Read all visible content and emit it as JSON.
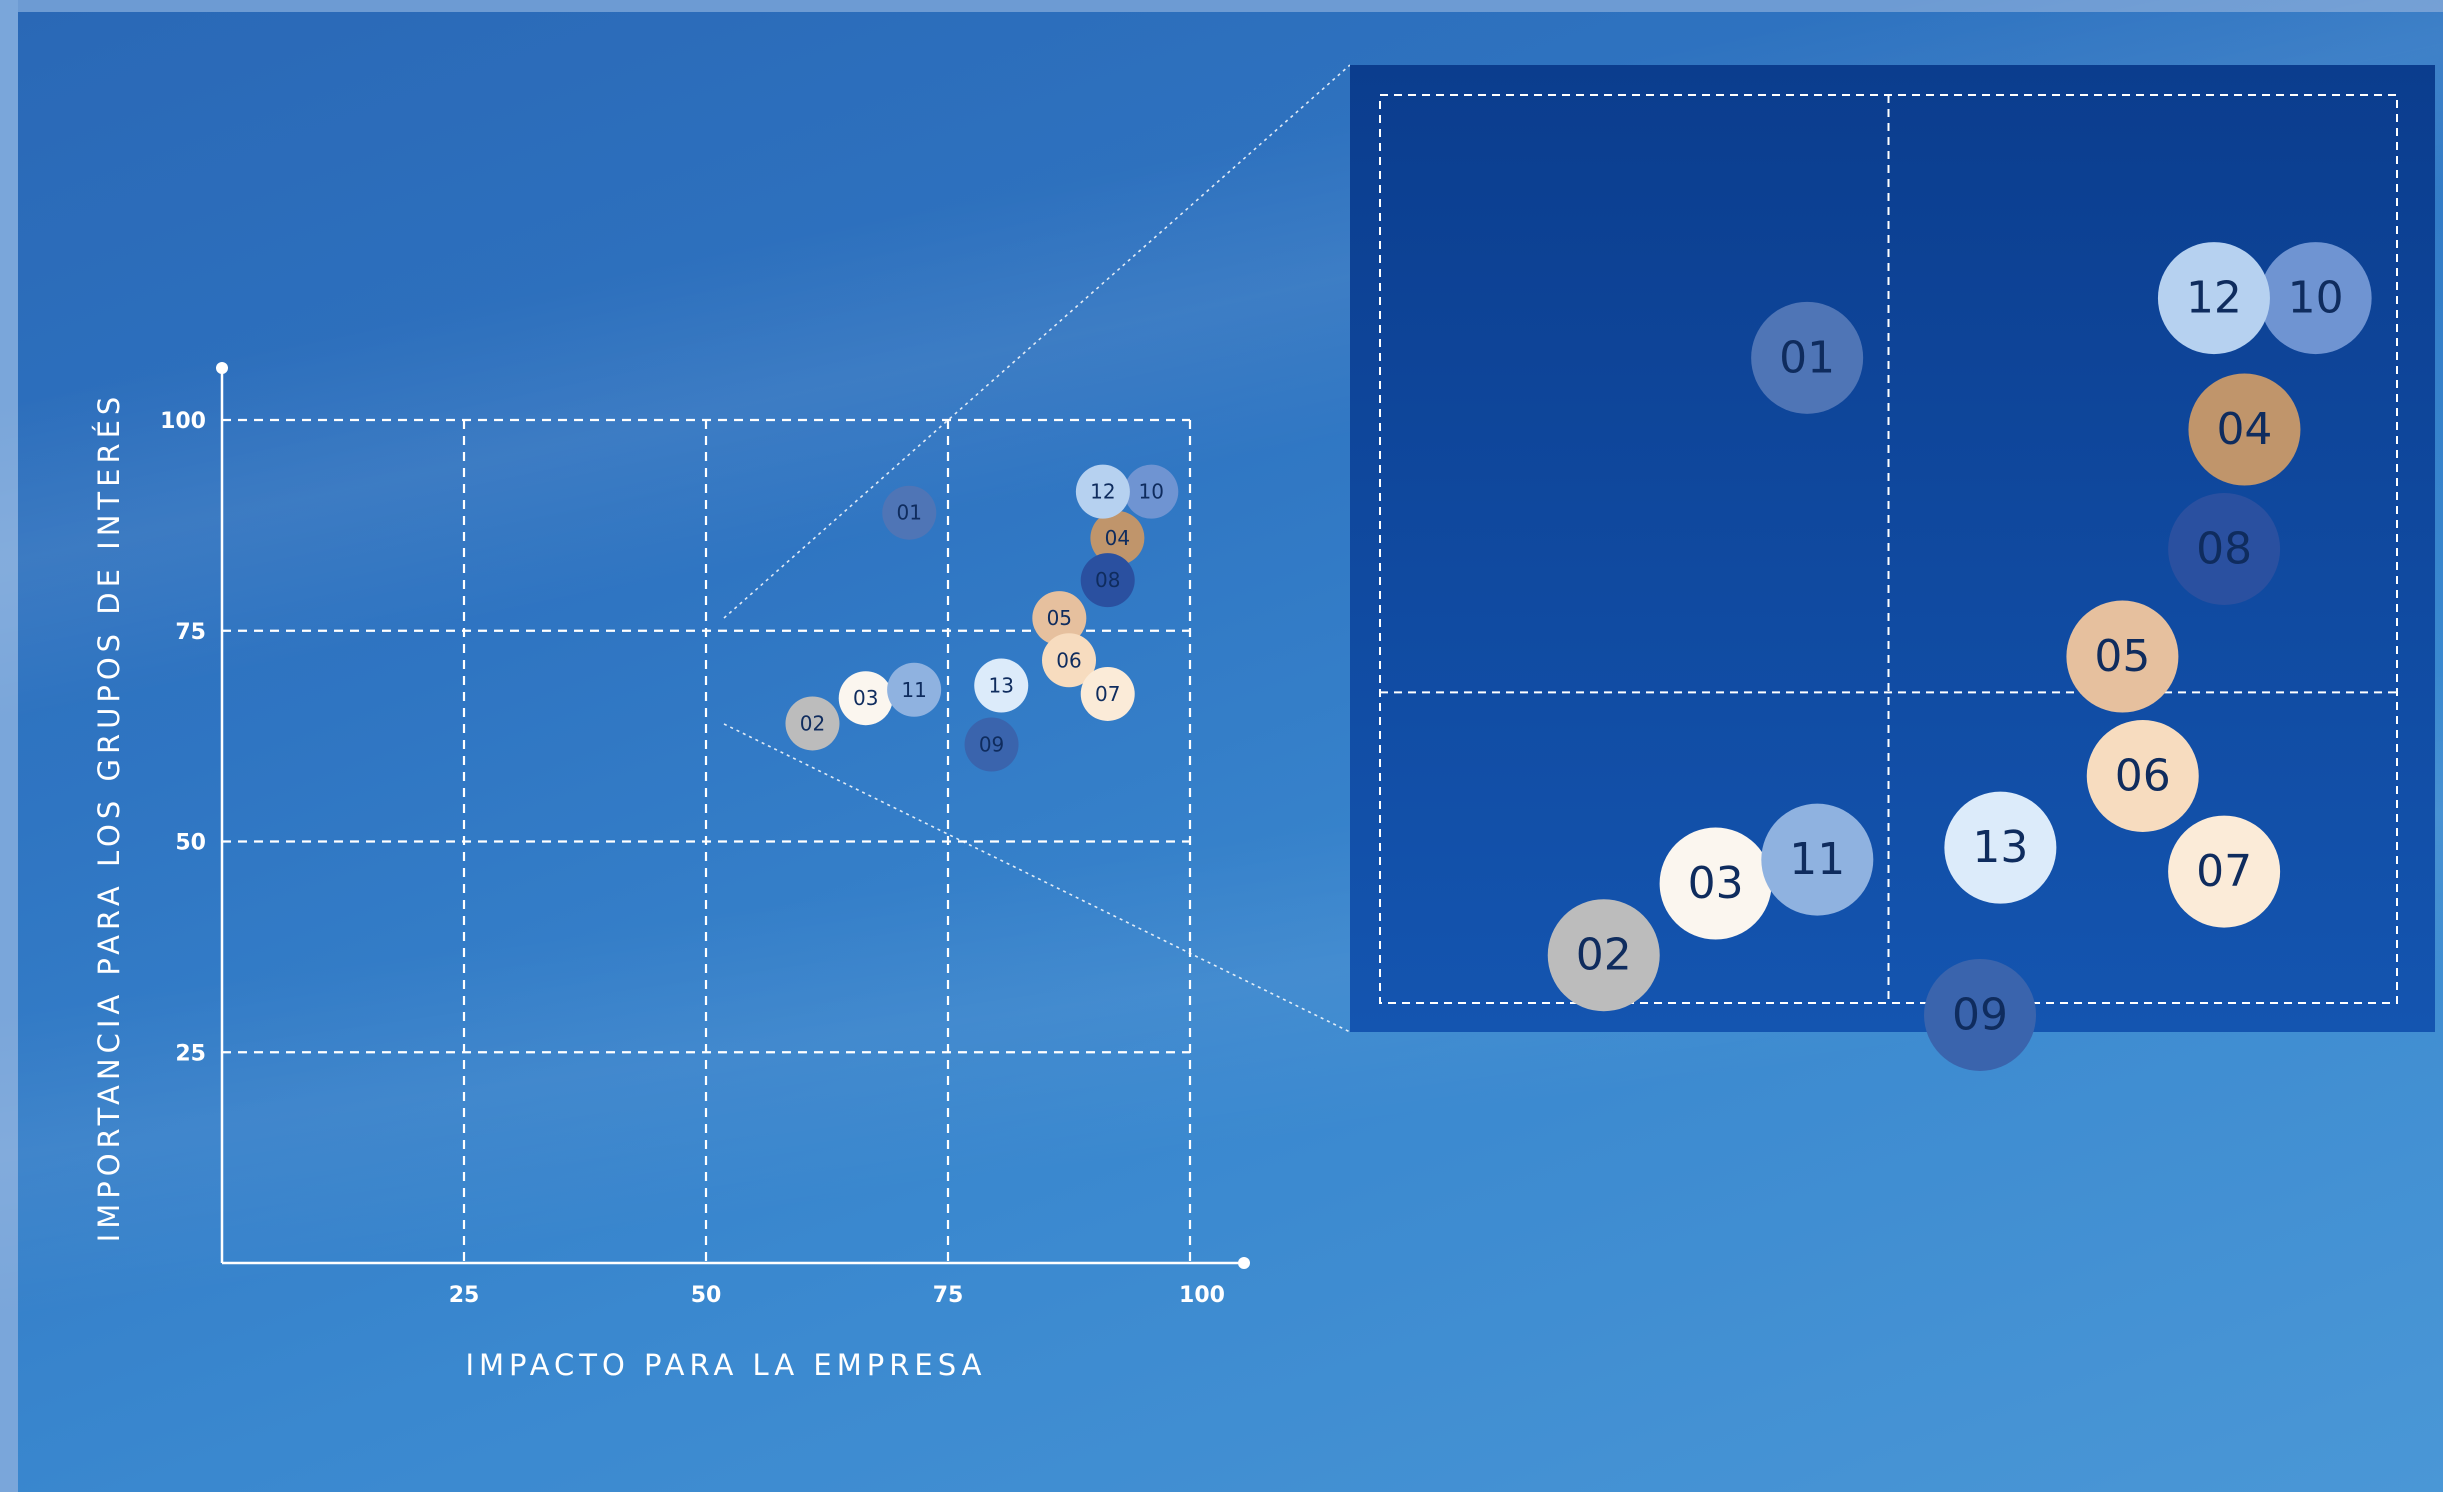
{
  "chart_data": {
    "type": "scatter",
    "title": "",
    "xlabel": "IMPACTO PARA LA EMPRESA",
    "ylabel": "IMPORTANCIA PARA LOS GRUPOS DE INTERÉS",
    "xlim": [
      0,
      100
    ],
    "ylim": [
      0,
      100
    ],
    "x_ticks": [
      "25",
      "50",
      "75",
      "100"
    ],
    "y_ticks": [
      "25",
      "50",
      "75",
      "100"
    ],
    "grid": true,
    "zoom_inset": {
      "xlim": [
        50,
        100
      ],
      "ylim": [
        62,
        100
      ]
    },
    "points": [
      {
        "label": "01",
        "x": 71,
        "y": 89,
        "color": "#4f75b6",
        "text_color": "#0f2c5e"
      },
      {
        "label": "02",
        "x": 61,
        "y": 64,
        "color": "#bcbcbc",
        "text_color": "#0f2c5e"
      },
      {
        "label": "03",
        "x": 66.5,
        "y": 67,
        "color": "#fbf6ef",
        "text_color": "#0f2c5e"
      },
      {
        "label": "04",
        "x": 92.5,
        "y": 86,
        "color": "#c0956b",
        "text_color": "#0f2c5e"
      },
      {
        "label": "05",
        "x": 86.5,
        "y": 76.5,
        "color": "#e6c09e",
        "text_color": "#0f2c5e"
      },
      {
        "label": "06",
        "x": 87.5,
        "y": 71.5,
        "color": "#f7dcbf",
        "text_color": "#0f2c5e"
      },
      {
        "label": "07",
        "x": 91.5,
        "y": 67.5,
        "color": "#fbebd8",
        "text_color": "#0f2c5e"
      },
      {
        "label": "08",
        "x": 91.5,
        "y": 81,
        "color": "#2a50a0",
        "text_color": "#0f2c5e"
      },
      {
        "label": "09",
        "x": 79.5,
        "y": 61.5,
        "color": "#3a64ad",
        "text_color": "#0f2c5e"
      },
      {
        "label": "10",
        "x": 96,
        "y": 91.5,
        "color": "#6f94d2",
        "text_color": "#0f2c5e"
      },
      {
        "label": "11",
        "x": 71.5,
        "y": 68,
        "color": "#8fb2e0",
        "text_color": "#0f2c5e"
      },
      {
        "label": "12",
        "x": 91,
        "y": 91.5,
        "color": "#b6d1f0",
        "text_color": "#0f2c5e"
      },
      {
        "label": "13",
        "x": 80.5,
        "y": 68.5,
        "color": "#dcebfa",
        "text_color": "#0f2c5e"
      }
    ]
  }
}
